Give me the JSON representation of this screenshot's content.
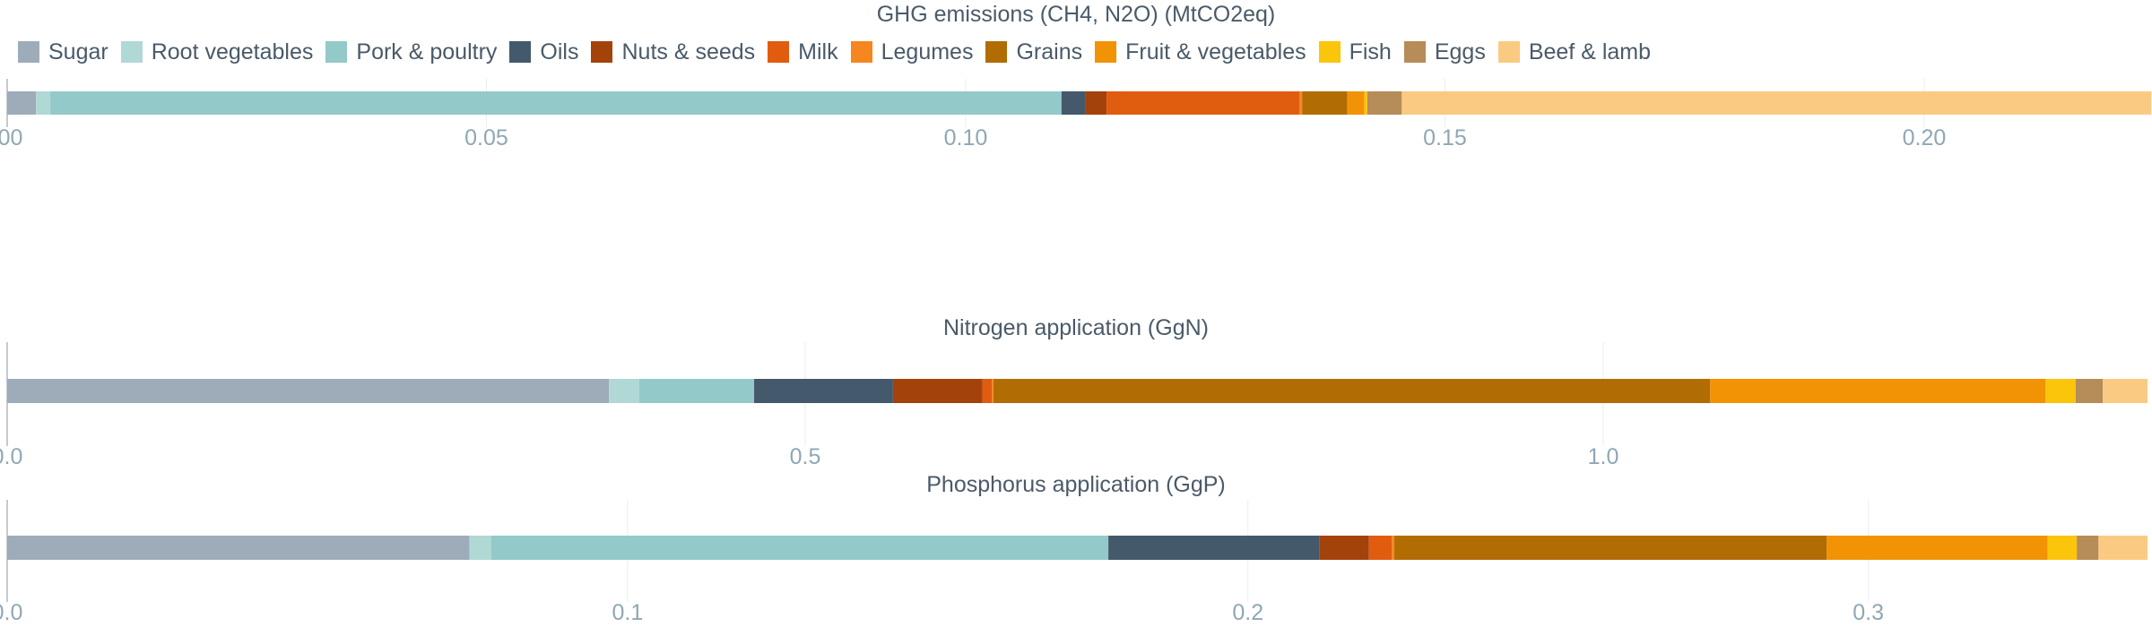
{
  "legend": [
    {
      "name": "Sugar",
      "color": "#9eacb9"
    },
    {
      "name": "Root vegetables",
      "color": "#b0d8d5"
    },
    {
      "name": "Pork & poultry",
      "color": "#93c9c8"
    },
    {
      "name": "Oils",
      "color": "#44596b"
    },
    {
      "name": "Nuts & seeds",
      "color": "#a4420c"
    },
    {
      "name": "Milk",
      "color": "#e05c0f"
    },
    {
      "name": "Legumes",
      "color": "#f6861f"
    },
    {
      "name": "Grains",
      "color": "#b16c04"
    },
    {
      "name": "Fruit & vegetables",
      "color": "#f29305"
    },
    {
      "name": "Fish",
      "color": "#fbc50b"
    },
    {
      "name": "Eggs",
      "color": "#b68c58"
    },
    {
      "name": "Beef & lamb",
      "color": "#fbca82"
    }
  ],
  "chart_data": [
    {
      "type": "bar",
      "orientation": "horizontal-stacked",
      "title": "GHG emissions (CH4, N2O) (MtCO2eq)",
      "categories": [
        "Sugar",
        "Root vegetables",
        "Pork & poultry",
        "Oils",
        "Nuts & seeds",
        "Milk",
        "Legumes",
        "Grains",
        "Fruit & vegetables",
        "Fish",
        "Eggs",
        "Beef & lamb"
      ],
      "values": [
        0.003,
        0.0015,
        0.1055,
        0.0025,
        0.0022,
        0.0201,
        0.0003,
        0.0047,
        0.0018,
        0.0003,
        0.0036,
        0.0782
      ],
      "xlim": [
        0,
        0.2233
      ],
      "ticks": [
        0,
        0.05,
        0.1,
        0.15,
        0.2
      ],
      "tick_labels": [
        ".00",
        "0.05",
        "0.10",
        "0.15",
        "0.20"
      ],
      "grid": true
    },
    {
      "type": "bar",
      "orientation": "horizontal-stacked",
      "title": "Nitrogen application (GgN)",
      "categories": [
        "Sugar",
        "Root vegetables",
        "Pork & poultry",
        "Oils",
        "Nuts & seeds",
        "Milk",
        "Legumes",
        "Grains",
        "Fruit & vegetables",
        "Fish",
        "Eggs",
        "Beef & lamb"
      ],
      "values": [
        0.377,
        0.019,
        0.072,
        0.087,
        0.056,
        0.006,
        0.001,
        0.449,
        0.21,
        0.019,
        0.017,
        0.028
      ],
      "xlim": [
        0,
        1.341
      ],
      "ticks": [
        0,
        0.5,
        1.0
      ],
      "tick_labels": [
        "0.0",
        "0.5",
        "1.0"
      ],
      "grid": true
    },
    {
      "type": "bar",
      "orientation": "horizontal-stacked",
      "title": "Phosphorus application (GgP)",
      "categories": [
        "Sugar",
        "Root vegetables",
        "Pork & poultry",
        "Oils",
        "Nuts & seeds",
        "Milk",
        "Legumes",
        "Grains",
        "Fruit & vegetables",
        "Fish",
        "Eggs",
        "Beef & lamb"
      ],
      "values": [
        0.0745,
        0.0035,
        0.0995,
        0.034,
        0.008,
        0.0037,
        0.0004,
        0.0697,
        0.0356,
        0.0047,
        0.0035,
        0.0079
      ],
      "xlim": [
        0,
        0.345
      ],
      "ticks": [
        0,
        0.1,
        0.2,
        0.3
      ],
      "tick_labels": [
        "0.0",
        "0.1",
        "0.2",
        "0.3"
      ],
      "grid": true
    }
  ]
}
